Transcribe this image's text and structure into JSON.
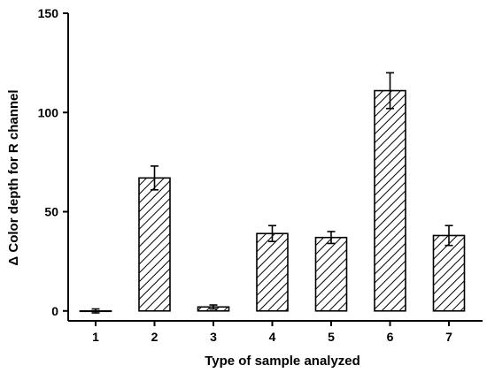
{
  "chart_data": {
    "type": "bar",
    "title": "",
    "xlabel": "Type of sample analyzed",
    "ylabel": "Δ Color depth for R channel",
    "categories": [
      "1",
      "2",
      "3",
      "4",
      "5",
      "6",
      "7"
    ],
    "values": [
      0,
      67,
      2,
      39,
      37,
      111,
      38
    ],
    "error": [
      1,
      6,
      1,
      4,
      3,
      9,
      5
    ],
    "ylim": [
      -5,
      150
    ],
    "yticks": [
      0,
      50,
      100,
      150
    ],
    "grid": false,
    "bar_fill": "hatched",
    "colors": {
      "bar_edge": "#000000",
      "hatch": "#000000",
      "background": "#ffffff"
    }
  }
}
